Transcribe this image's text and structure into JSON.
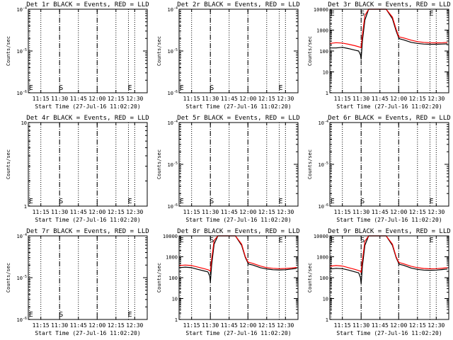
{
  "figure": {
    "xlabel": "Start Time (27-Jul-16 11:02:20)",
    "ylabel": "Counts/sec",
    "x_tick_labels": [
      "11:15",
      "11:30",
      "11:45",
      "12:00",
      "12:15",
      "12:30"
    ],
    "colors": {
      "events": "#000000",
      "lld": "#ff0000"
    }
  },
  "chart_data": [
    {
      "type": "line",
      "title": "Det 1r BLACK = Events, RED = LLD",
      "xlabel": "Start Time (27-Jul-16 11:02:20)",
      "ylabel": "Counts/sec",
      "xlim": [
        "11:05",
        "12:40"
      ],
      "y_scale": "log",
      "ylim": [
        1e-06,
        0.0001
      ],
      "y_tick_labels": [
        "10^-6",
        "10^-5",
        "10^-4"
      ],
      "markers": [
        {
          "label": "E",
          "time": "11:06",
          "style": "dotted"
        },
        {
          "label": "S",
          "time": "11:30",
          "style": "dashed"
        },
        {
          "label": "",
          "time": "12:00",
          "style": "dashed"
        },
        {
          "label": "E",
          "time": "12:25",
          "style": "dotted"
        }
      ],
      "series": []
    },
    {
      "type": "line",
      "title": "Det 2r BLACK = Events, RED = LLD",
      "xlabel": "Start Time (27-Jul-16 11:02:20)",
      "ylabel": "Counts/sec",
      "xlim": [
        "11:05",
        "12:40"
      ],
      "y_scale": "log",
      "ylim": [
        1e-06,
        0.0001
      ],
      "y_tick_labels": [
        "10^-6",
        "10^-5",
        "10^-4"
      ],
      "markers": [
        {
          "label": "E",
          "time": "11:06",
          "style": "dotted"
        },
        {
          "label": "S",
          "time": "11:30",
          "style": "dashed"
        },
        {
          "label": "",
          "time": "12:00",
          "style": "dashed"
        },
        {
          "label": "E",
          "time": "12:25",
          "style": "dotted"
        }
      ],
      "series": []
    },
    {
      "type": "line",
      "title": "Det 3r BLACK = Events, RED = LLD",
      "xlabel": "Start Time (27-Jul-16 11:02:20)",
      "ylabel": "Counts/sec",
      "xlim": [
        "11:05",
        "12:40"
      ],
      "y_scale": "log",
      "ylim": [
        1,
        10000
      ],
      "y_tick_labels": [
        "1",
        "10",
        "100",
        "1000",
        "10000"
      ],
      "markers": [
        {
          "label": "E",
          "time": "11:06",
          "style": "dotted"
        },
        {
          "label": "S",
          "time": "11:30",
          "style": "dashed"
        },
        {
          "label": "",
          "time": "12:00",
          "style": "dashed"
        },
        {
          "label": "E",
          "time": "12:25",
          "style": "dotted"
        }
      ],
      "series": [
        {
          "color": "#000000",
          "x": [
            "11:05",
            "11:10",
            "11:15",
            "11:20",
            "11:25",
            "11:28",
            "11:29.5",
            "11:30",
            "11:31",
            "11:33",
            "11:36",
            "11:40",
            "11:45",
            "11:50",
            "11:55",
            "11:58",
            "12:00",
            "12:01",
            "12:04",
            "12:10",
            "12:15",
            "12:20",
            "12:25",
            "12:30",
            "12:35",
            "12:39"
          ],
          "y": [
            140,
            140,
            150,
            130,
            110,
            100,
            65,
            40,
            300,
            3000,
            10000,
            10000,
            10000,
            10000,
            3500,
            900,
            420,
            380,
            340,
            260,
            230,
            215,
            210,
            210,
            215,
            220
          ]
        },
        {
          "color": "#ff0000",
          "x": [
            "11:05",
            "11:10",
            "11:15",
            "11:20",
            "11:25",
            "11:28",
            "11:29.5",
            "11:30",
            "11:31",
            "11:33",
            "11:36",
            "11:40",
            "11:45",
            "11:50",
            "11:55",
            "11:58",
            "12:00",
            "12:04",
            "12:10",
            "12:15",
            "12:20",
            "12:25",
            "12:30",
            "12:35",
            "12:39"
          ],
          "y": [
            230,
            250,
            240,
            210,
            180,
            160,
            150,
            140,
            600,
            5000,
            10000,
            10000,
            10000,
            10000,
            4200,
            1100,
            480,
            420,
            330,
            280,
            260,
            250,
            245,
            250,
            260
          ]
        }
      ]
    },
    {
      "type": "line",
      "title": "Det 4r BLACK = Events, RED = LLD",
      "xlabel": "Start Time (27-Jul-16 11:02:20)",
      "ylabel": "Counts/sec",
      "xlim": [
        "11:05",
        "12:40"
      ],
      "y_scale": "log",
      "ylim": [
        1,
        10
      ],
      "y_tick_labels": [
        "1",
        "10"
      ],
      "markers": [
        {
          "label": "E",
          "time": "11:06",
          "style": "dotted"
        },
        {
          "label": "S",
          "time": "11:30",
          "style": "dashed"
        },
        {
          "label": "",
          "time": "12:00",
          "style": "dashed"
        },
        {
          "label": "E",
          "time": "12:25",
          "style": "dotted"
        }
      ],
      "series": []
    },
    {
      "type": "line",
      "title": "Det 5r BLACK = Events, RED = LLD",
      "xlabel": "Start Time (27-Jul-16 11:02:20)",
      "ylabel": "Counts/sec",
      "xlim": [
        "11:05",
        "12:40"
      ],
      "y_scale": "log",
      "ylim": [
        1e-06,
        0.0001
      ],
      "y_tick_labels": [
        "10^-6",
        "10^-5",
        "10^-4"
      ],
      "markers": [
        {
          "label": "E",
          "time": "11:06",
          "style": "dotted"
        },
        {
          "label": "S",
          "time": "11:30",
          "style": "dashed"
        },
        {
          "label": "",
          "time": "12:00",
          "style": "dashed"
        },
        {
          "label": "E",
          "time": "12:25",
          "style": "dotted"
        }
      ],
      "series": []
    },
    {
      "type": "line",
      "title": "Det 6r BLACK = Events, RED = LLD",
      "xlabel": "Start Time (27-Jul-16 11:02:20)",
      "ylabel": "Counts/sec",
      "xlim": [
        "11:05",
        "12:40"
      ],
      "y_scale": "log",
      "ylim": [
        1e-06,
        0.0001
      ],
      "y_tick_labels": [
        "10^-6",
        "10^-5",
        "10^-4"
      ],
      "markers": [
        {
          "label": "E",
          "time": "11:06",
          "style": "dotted"
        },
        {
          "label": "S",
          "time": "11:30",
          "style": "dashed"
        },
        {
          "label": "",
          "time": "12:00",
          "style": "dashed"
        },
        {
          "label": "E",
          "time": "12:25",
          "style": "dotted"
        }
      ],
      "series": []
    },
    {
      "type": "line",
      "title": "Det 7r BLACK = Events, RED = LLD",
      "xlabel": "Start Time (27-Jul-16 11:02:20)",
      "ylabel": "Counts/sec",
      "xlim": [
        "11:05",
        "12:40"
      ],
      "y_scale": "log",
      "ylim": [
        1e-06,
        0.0001
      ],
      "y_tick_labels": [
        "10^-6",
        "10^-5",
        "10^-4"
      ],
      "markers": [
        {
          "label": "E",
          "time": "11:06",
          "style": "dotted"
        },
        {
          "label": "S",
          "time": "11:30",
          "style": "dashed"
        },
        {
          "label": "",
          "time": "12:00",
          "style": "dashed"
        },
        {
          "label": "E",
          "time": "12:25",
          "style": "dotted"
        }
      ],
      "series": []
    },
    {
      "type": "line",
      "title": "Det 8r BLACK = Events, RED = LLD",
      "xlabel": "Start Time (27-Jul-16 11:02:20)",
      "ylabel": "Counts/sec",
      "xlim": [
        "11:05",
        "12:40"
      ],
      "y_scale": "log",
      "ylim": [
        1,
        10000
      ],
      "y_tick_labels": [
        "1",
        "10",
        "100",
        "1000",
        "10000"
      ],
      "markers": [
        {
          "label": "E",
          "time": "11:06",
          "style": "dotted"
        },
        {
          "label": "S",
          "time": "11:30",
          "style": "dashed"
        },
        {
          "label": "",
          "time": "12:00",
          "style": "dashed"
        },
        {
          "label": "E",
          "time": "12:25",
          "style": "dotted"
        }
      ],
      "series": [
        {
          "color": "#000000",
          "x": [
            "11:05",
            "11:10",
            "11:15",
            "11:20",
            "11:25",
            "11:28",
            "11:29.5",
            "11:30",
            "11:31",
            "11:33",
            "11:36",
            "11:40",
            "11:45",
            "11:50",
            "11:55",
            "11:58",
            "12:00",
            "12:01",
            "12:04",
            "12:10",
            "12:15",
            "12:20",
            "12:25",
            "12:30",
            "12:35",
            "12:39"
          ],
          "y": [
            300,
            320,
            300,
            250,
            210,
            190,
            120,
            60,
            400,
            4000,
            10000,
            10000,
            10000,
            10000,
            3500,
            900,
            500,
            440,
            400,
            300,
            260,
            240,
            235,
            240,
            260,
            280
          ]
        },
        {
          "color": "#ff0000",
          "x": [
            "11:05",
            "11:10",
            "11:15",
            "11:20",
            "11:25",
            "11:28",
            "11:29.5",
            "11:30",
            "11:31",
            "11:33",
            "11:36",
            "11:40",
            "11:45",
            "11:50",
            "11:55",
            "11:58",
            "12:00",
            "12:04",
            "12:10",
            "12:15",
            "12:20",
            "12:25",
            "12:30",
            "12:35",
            "12:39"
          ],
          "y": [
            380,
            400,
            380,
            320,
            270,
            240,
            220,
            200,
            800,
            6000,
            10000,
            10000,
            10000,
            10000,
            4000,
            1000,
            560,
            480,
            360,
            300,
            280,
            270,
            275,
            290,
            310
          ]
        }
      ]
    },
    {
      "type": "line",
      "title": "Det 9r BLACK = Events, RED = LLD",
      "xlabel": "Start Time (27-Jul-16 11:02:20)",
      "ylabel": "Counts/sec",
      "xlim": [
        "11:05",
        "12:40"
      ],
      "y_scale": "log",
      "ylim": [
        1,
        10000
      ],
      "y_tick_labels": [
        "1",
        "10",
        "100",
        "1000",
        "10000"
      ],
      "markers": [
        {
          "label": "E",
          "time": "11:06",
          "style": "dotted"
        },
        {
          "label": "S",
          "time": "11:30",
          "style": "dashed"
        },
        {
          "label": "",
          "time": "12:00",
          "style": "dashed"
        },
        {
          "label": "E",
          "time": "12:25",
          "style": "dotted"
        }
      ],
      "series": [
        {
          "color": "#000000",
          "x": [
            "11:05",
            "11:10",
            "11:15",
            "11:20",
            "11:25",
            "11:28",
            "11:29.5",
            "11:30",
            "11:31",
            "11:33",
            "11:36",
            "11:40",
            "11:45",
            "11:50",
            "11:55",
            "11:58",
            "12:00",
            "12:01",
            "12:04",
            "12:10",
            "12:15",
            "12:20",
            "12:25",
            "12:30",
            "12:35",
            "12:39"
          ],
          "y": [
            260,
            280,
            270,
            230,
            190,
            170,
            100,
            50,
            350,
            3500,
            10000,
            10000,
            10000,
            10000,
            3500,
            900,
            480,
            430,
            390,
            290,
            250,
            230,
            225,
            230,
            245,
            260
          ]
        },
        {
          "color": "#ff0000",
          "x": [
            "11:05",
            "11:10",
            "11:15",
            "11:20",
            "11:25",
            "11:28",
            "11:29.5",
            "11:30",
            "11:31",
            "11:33",
            "11:36",
            "11:40",
            "11:45",
            "11:50",
            "11:55",
            "11:58",
            "12:00",
            "12:04",
            "12:10",
            "12:15",
            "12:20",
            "12:25",
            "12:30",
            "12:35",
            "12:39"
          ],
          "y": [
            350,
            380,
            360,
            300,
            250,
            220,
            200,
            180,
            700,
            5500,
            10000,
            10000,
            10000,
            10000,
            4000,
            1000,
            540,
            460,
            350,
            300,
            275,
            265,
            270,
            285,
            300
          ]
        }
      ]
    }
  ]
}
